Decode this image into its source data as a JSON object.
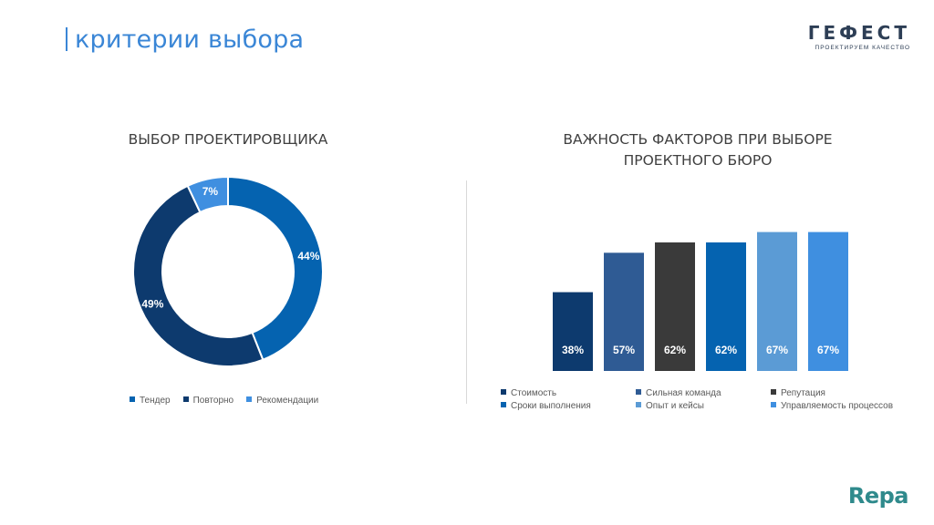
{
  "header": {
    "title": "критерии выбора"
  },
  "logo": {
    "name": "ГЕФЕСТ",
    "tagline": "ПРОЕКТИРУЕМ КАЧЕСТВО"
  },
  "footer_logo": {
    "name": "Repa"
  },
  "colors": {
    "accent": "#3a86d6",
    "divider": "#d9d9d9"
  },
  "chart_data": [
    {
      "type": "pie",
      "title": "ВЫБОР ПРОЕКТИРОВЩИКА",
      "categories": [
        "Тендер",
        "Повторно",
        "Рекомендации"
      ],
      "values": [
        44,
        49,
        7
      ],
      "labels": [
        "44%",
        "49%",
        "7%"
      ],
      "colors": [
        "#0563b0",
        "#0d3a6e",
        "#3f8fe0"
      ],
      "legend": "bottom"
    },
    {
      "type": "bar",
      "title_lines": [
        "ВАЖНОСТЬ ФАКТОРОВ ПРИ ВЫБОРЕ",
        "ПРОЕКТНОГО БЮРО"
      ],
      "categories": [
        "Стоимость",
        "Сильная команда",
        "Репутация",
        "Сроки выполнения",
        "Опыт и кейсы",
        "Управляемость процессов"
      ],
      "values": [
        38,
        57,
        62,
        62,
        67,
        67
      ],
      "labels": [
        "38%",
        "57%",
        "62%",
        "62%",
        "67%",
        "67%"
      ],
      "colors": [
        "#0d3a6e",
        "#2f5b94",
        "#3a3a3a",
        "#0563b0",
        "#5b9bd5",
        "#3f8fe0"
      ],
      "ylim": [
        0,
        80
      ],
      "grid": false,
      "legend": "bottom"
    }
  ]
}
